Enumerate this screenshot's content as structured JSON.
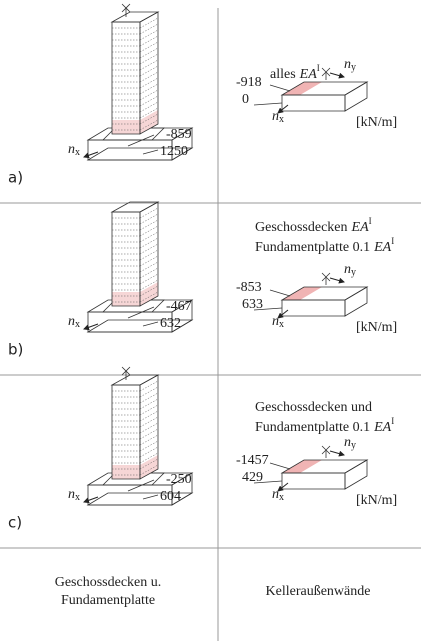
{
  "rows": [
    {
      "label": "a)",
      "building_values": [
        -859,
        1250
      ],
      "wall_values": [
        -918,
        0
      ],
      "caption": [
        {
          "text": "alles",
          "math": "EA",
          "sup": "I"
        }
      ]
    },
    {
      "label": "b)",
      "building_values": [
        -467,
        632
      ],
      "wall_values": [
        -853,
        633
      ],
      "caption": [
        {
          "text": "Geschossdecken",
          "math": "EA",
          "sup": "I"
        },
        {
          "text": "Fundamentplatte 0.1",
          "math": "EA",
          "sup": "I"
        }
      ]
    },
    {
      "label": "c)",
      "building_values": [
        -250,
        604
      ],
      "wall_values": [
        -1457,
        429
      ],
      "caption": [
        {
          "text": "Geschossdecken und"
        },
        {
          "text": "Fundamentplatte 0.1",
          "math": "EA",
          "sup": "I"
        }
      ]
    }
  ],
  "axes": {
    "x": {
      "base": "n",
      "sub": "x"
    },
    "y": {
      "base": "n",
      "sub": "y"
    }
  },
  "unit": "[kN/m]",
  "footer": {
    "left": [
      "Geschossdecken u.",
      "Fundamentplatte"
    ],
    "right": "Kelleraußenwände"
  }
}
